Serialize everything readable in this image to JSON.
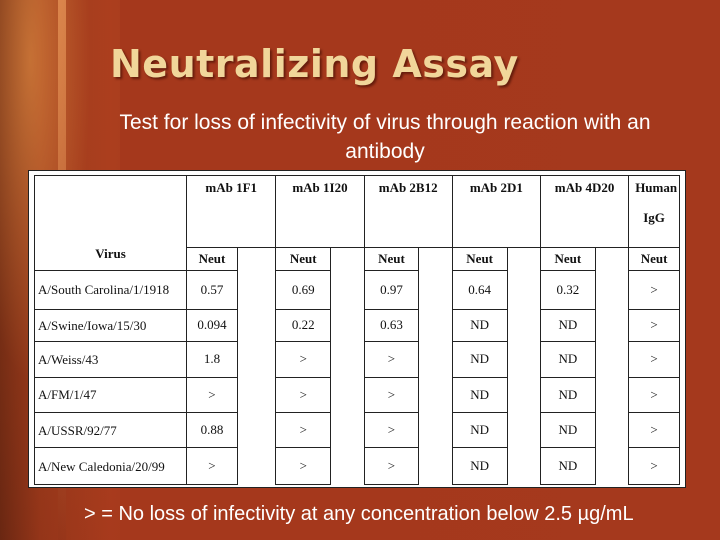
{
  "slide": {
    "title": "Neutralizing Assay",
    "subtitle": "Test for loss of infectivity of virus through reaction with an antibody",
    "footnote": "> = No loss of infectivity at any concentration below 2.5 µg/mL"
  },
  "table": {
    "virus_header": "Virus",
    "antibodies": [
      "mAb 1F1",
      "mAb 1I20",
      "mAb 2B12",
      "mAb 2D1",
      "mAb 4D20",
      "Human"
    ],
    "last_antibody_line2": "IgG",
    "measure_label": "Neut",
    "rows": [
      {
        "virus": "A/South Carolina/1/1918",
        "values": [
          "0.57",
          "0.69",
          "0.97",
          "0.64",
          "0.32",
          ">"
        ]
      },
      {
        "virus": "A/Swine/Iowa/15/30",
        "values": [
          "0.094",
          "0.22",
          "0.63",
          "ND",
          "ND",
          ">"
        ]
      },
      {
        "virus": "A/Weiss/43",
        "values": [
          "1.8",
          ">",
          ">",
          "ND",
          "ND",
          ">"
        ]
      },
      {
        "virus": "A/FM/1/47",
        "values": [
          ">",
          ">",
          ">",
          "ND",
          "ND",
          ">"
        ]
      },
      {
        "virus": "A/USSR/92/77",
        "values": [
          "0.88",
          ">",
          ">",
          "ND",
          "ND",
          ">"
        ]
      },
      {
        "virus": "A/New Caledonia/20/99",
        "values": [
          ">",
          ">",
          ">",
          "ND",
          "ND",
          ">"
        ]
      }
    ]
  }
}
